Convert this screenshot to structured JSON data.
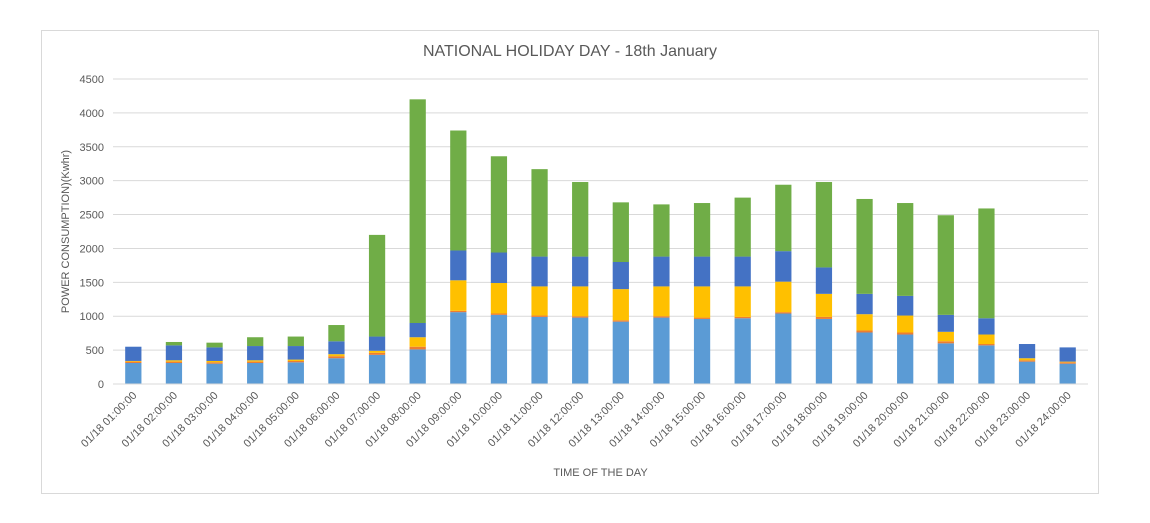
{
  "chart_data": {
    "type": "bar",
    "stacked": true,
    "title": "NATIONAL HOLIDAY DAY - 18th January",
    "xlabel": "TIME OF THE DAY",
    "ylabel": "POWER CONSUMPTION)(Kwhr)",
    "ylim": [
      0,
      4500
    ],
    "yticks": [
      0,
      500,
      1000,
      1500,
      2000,
      2500,
      3000,
      3500,
      4000,
      4500
    ],
    "grid": true,
    "legend": "none",
    "categories": [
      "01/18 01:00:00",
      "01/18 02:00:00",
      "01/18 03:00:00",
      "01/18 04:00:00",
      "01/18 05:00:00",
      "01/18 06:00:00",
      "01/18 07:00:00",
      "01/18 08:00:00",
      "01/18 09:00:00",
      "01/18 10:00:00",
      "01/18 11:00:00",
      "01/18 12:00:00",
      "01/18 13:00:00",
      "01/18 14:00:00",
      "01/18 15:00:00",
      "01/18 16:00:00",
      "01/18 17:00:00",
      "01/18 18:00:00",
      "01/18 19:00:00",
      "01/18 20:00:00",
      "01/18 21:00:00",
      "01/18 22:00:00",
      "01/18 23:00:00",
      "01/18 24:00:00"
    ],
    "series": [
      {
        "color": "#5b9bd5",
        "values": [
          310,
          310,
          300,
          310,
          320,
          380,
          430,
          510,
          1060,
          1020,
          990,
          980,
          920,
          980,
          960,
          970,
          1040,
          960,
          760,
          730,
          600,
          570,
          330,
          300
        ]
      },
      {
        "color": "#ed7d31",
        "values": [
          20,
          20,
          20,
          20,
          20,
          30,
          30,
          40,
          20,
          20,
          20,
          20,
          20,
          20,
          20,
          20,
          20,
          30,
          30,
          30,
          30,
          20,
          20,
          20
        ]
      },
      {
        "color": "#ffc000",
        "values": [
          10,
          20,
          20,
          20,
          20,
          30,
          30,
          140,
          450,
          450,
          430,
          440,
          460,
          440,
          460,
          450,
          450,
          340,
          240,
          250,
          140,
          140,
          30,
          10
        ]
      },
      {
        "color": "#4472c4",
        "values": [
          210,
          220,
          200,
          210,
          200,
          190,
          210,
          210,
          440,
          450,
          440,
          440,
          400,
          440,
          440,
          440,
          450,
          390,
          300,
          290,
          250,
          240,
          210,
          210
        ]
      },
      {
        "color": "#70ad47",
        "values": [
          0,
          50,
          70,
          130,
          140,
          240,
          1500,
          3300,
          1770,
          1420,
          1290,
          1100,
          880,
          770,
          790,
          870,
          980,
          1260,
          1400,
          1370,
          1470,
          1620,
          0,
          0
        ]
      }
    ]
  }
}
